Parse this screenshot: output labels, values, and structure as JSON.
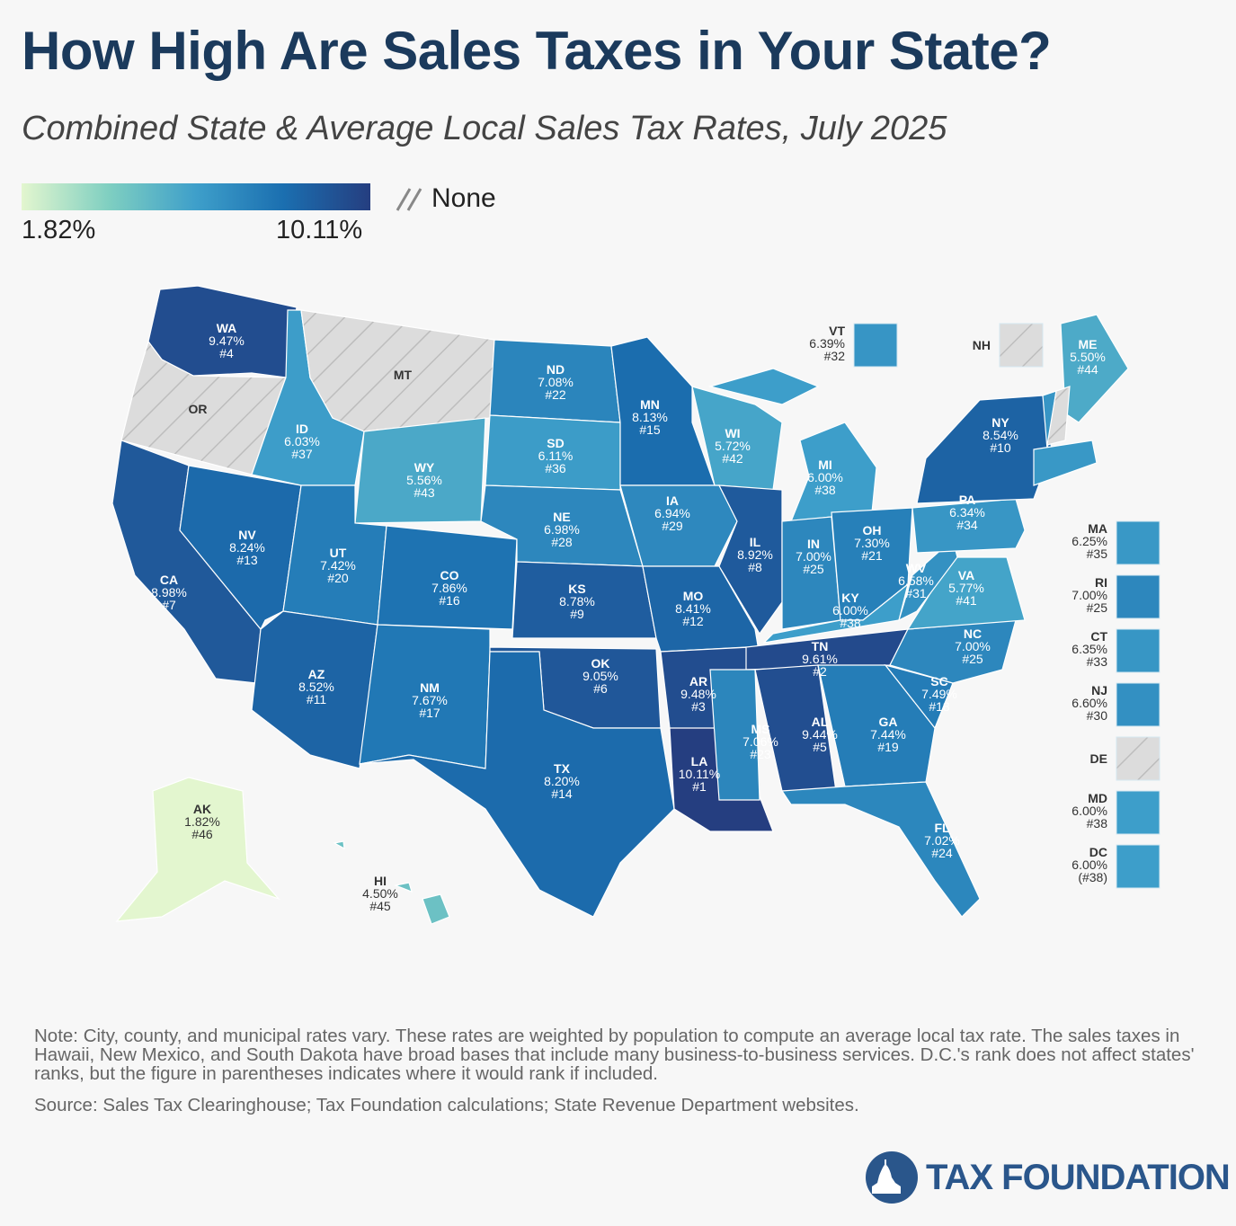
{
  "title": "How High Are Sales Taxes in Your State?",
  "subtitle": "Combined State & Average Local Sales Tax Rates, July 2025",
  "legend": {
    "min_label": "1.82%",
    "max_label": "10.11%",
    "none_label": "None",
    "min": 1.82,
    "max": 10.11,
    "color_stops": [
      "#e3f6cf",
      "#7fcfc1",
      "#3e9fca",
      "#1b6fb0",
      "#253e80"
    ],
    "none_color": "#dcdcdc"
  },
  "states": [
    {
      "abbr": "WA",
      "rate": "9.47%",
      "rank": "#4",
      "value": 9.47
    },
    {
      "abbr": "OR",
      "none": true
    },
    {
      "abbr": "CA",
      "rate": "8.98%",
      "rank": "#7",
      "value": 8.98
    },
    {
      "abbr": "NV",
      "rate": "8.24%",
      "rank": "#13",
      "value": 8.24
    },
    {
      "abbr": "ID",
      "rate": "6.03%",
      "rank": "#37",
      "value": 6.03
    },
    {
      "abbr": "MT",
      "none": true
    },
    {
      "abbr": "WY",
      "rate": "5.56%",
      "rank": "#43",
      "value": 5.56
    },
    {
      "abbr": "UT",
      "rate": "7.42%",
      "rank": "#20",
      "value": 7.42
    },
    {
      "abbr": "CO",
      "rate": "7.86%",
      "rank": "#16",
      "value": 7.86
    },
    {
      "abbr": "AZ",
      "rate": "8.52%",
      "rank": "#11",
      "value": 8.52
    },
    {
      "abbr": "NM",
      "rate": "7.67%",
      "rank": "#17",
      "value": 7.67
    },
    {
      "abbr": "ND",
      "rate": "7.08%",
      "rank": "#22",
      "value": 7.08
    },
    {
      "abbr": "SD",
      "rate": "6.11%",
      "rank": "#36",
      "value": 6.11
    },
    {
      "abbr": "NE",
      "rate": "6.98%",
      "rank": "#28",
      "value": 6.98
    },
    {
      "abbr": "KS",
      "rate": "8.78%",
      "rank": "#9",
      "value": 8.78
    },
    {
      "abbr": "OK",
      "rate": "9.05%",
      "rank": "#6",
      "value": 9.05
    },
    {
      "abbr": "TX",
      "rate": "8.20%",
      "rank": "#14",
      "value": 8.2
    },
    {
      "abbr": "MN",
      "rate": "8.13%",
      "rank": "#15",
      "value": 8.13
    },
    {
      "abbr": "IA",
      "rate": "6.94%",
      "rank": "#29",
      "value": 6.94
    },
    {
      "abbr": "MO",
      "rate": "8.41%",
      "rank": "#12",
      "value": 8.41
    },
    {
      "abbr": "AR",
      "rate": "9.48%",
      "rank": "#3",
      "value": 9.48
    },
    {
      "abbr": "LA",
      "rate": "10.11%",
      "rank": "#1",
      "value": 10.11
    },
    {
      "abbr": "WI",
      "rate": "5.72%",
      "rank": "#42",
      "value": 5.72
    },
    {
      "abbr": "IL",
      "rate": "8.92%",
      "rank": "#8",
      "value": 8.92
    },
    {
      "abbr": "MI",
      "rate": "6.00%",
      "rank": "#38",
      "value": 6.0
    },
    {
      "abbr": "IN",
      "rate": "7.00%",
      "rank": "#25",
      "value": 7.0
    },
    {
      "abbr": "OH",
      "rate": "7.30%",
      "rank": "#21",
      "value": 7.3
    },
    {
      "abbr": "KY",
      "rate": "6.00%",
      "rank": "#38",
      "value": 6.0
    },
    {
      "abbr": "TN",
      "rate": "9.61%",
      "rank": "#2",
      "value": 9.61
    },
    {
      "abbr": "MS",
      "rate": "7.06%",
      "rank": "#23",
      "value": 7.06
    },
    {
      "abbr": "AL",
      "rate": "9.44%",
      "rank": "#5",
      "value": 9.44
    },
    {
      "abbr": "GA",
      "rate": "7.44%",
      "rank": "#19",
      "value": 7.44
    },
    {
      "abbr": "FL",
      "rate": "7.02%",
      "rank": "#24",
      "value": 7.02
    },
    {
      "abbr": "SC",
      "rate": "7.49%",
      "rank": "#18",
      "value": 7.49
    },
    {
      "abbr": "NC",
      "rate": "7.00%",
      "rank": "#25",
      "value": 7.0
    },
    {
      "abbr": "VA",
      "rate": "5.77%",
      "rank": "#41",
      "value": 5.77
    },
    {
      "abbr": "WV",
      "rate": "6.58%",
      "rank": "#31",
      "value": 6.58
    },
    {
      "abbr": "PA",
      "rate": "6.34%",
      "rank": "#34",
      "value": 6.34
    },
    {
      "abbr": "NY",
      "rate": "8.54%",
      "rank": "#10",
      "value": 8.54
    },
    {
      "abbr": "ME",
      "rate": "5.50%",
      "rank": "#44",
      "value": 5.5
    },
    {
      "abbr": "AK",
      "rate": "1.82%",
      "rank": "#46",
      "value": 1.82
    },
    {
      "abbr": "HI",
      "rate": "4.50%",
      "rank": "#45",
      "value": 4.5
    }
  ],
  "callouts": [
    {
      "abbr": "VT",
      "rate": "6.39%",
      "rank": "#32",
      "value": 6.39
    },
    {
      "abbr": "NH",
      "none": true
    },
    {
      "abbr": "MA",
      "rate": "6.25%",
      "rank": "#35",
      "value": 6.25
    },
    {
      "abbr": "RI",
      "rate": "7.00%",
      "rank": "#25",
      "value": 7.0
    },
    {
      "abbr": "CT",
      "rate": "6.35%",
      "rank": "#33",
      "value": 6.35
    },
    {
      "abbr": "NJ",
      "rate": "6.60%",
      "rank": "#30",
      "value": 6.6
    },
    {
      "abbr": "DE",
      "none": true
    },
    {
      "abbr": "MD",
      "rate": "6.00%",
      "rank": "#38",
      "value": 6.0
    },
    {
      "abbr": "DC",
      "rate": "6.00%",
      "rank": "(#38)",
      "value": 6.0
    }
  ],
  "note": "Note: City, county, and municipal rates vary. These rates are weighted by population to compute an average local tax rate. The sales taxes in Hawaii, New Mexico, and South Dakota have broad bases that include many business-to-business services. D.C.'s rank does not affect states' ranks, but the figure in parentheses indicates where it would rank if included.",
  "source": "Source: Sales Tax Clearinghouse; Tax Foundation calculations; State Revenue Department websites.",
  "logo": {
    "text": "TAX FOUNDATION",
    "color": "#2a568b"
  }
}
